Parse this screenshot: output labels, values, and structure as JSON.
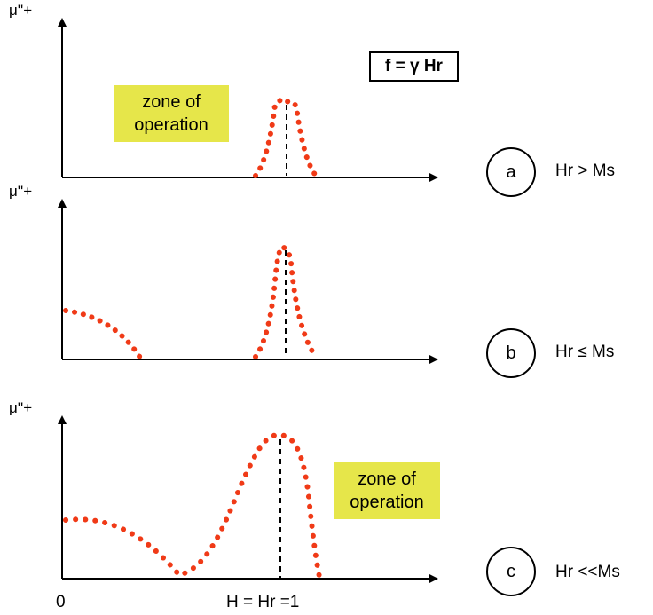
{
  "formula": "f = γ Hr",
  "panels": [
    {
      "y_label": "μ''+",
      "marker": "a",
      "condition": "Hr > Ms",
      "zone_label_line1": "zone of",
      "zone_label_line2": "operation"
    },
    {
      "y_label": "μ''+",
      "marker": "b",
      "condition": "Hr ≤ Ms"
    },
    {
      "y_label": "μ''+",
      "marker": "c",
      "condition": "Hr <<Ms",
      "zone_label_line1": "zone of",
      "zone_label_line2": "operation"
    }
  ],
  "x_axis": {
    "origin_label": "0",
    "resonance_label": "H = Hr =1"
  },
  "colors": {
    "curve": "#f03a17",
    "zone_highlight": "#e6e64a",
    "axis": "#000000"
  }
}
